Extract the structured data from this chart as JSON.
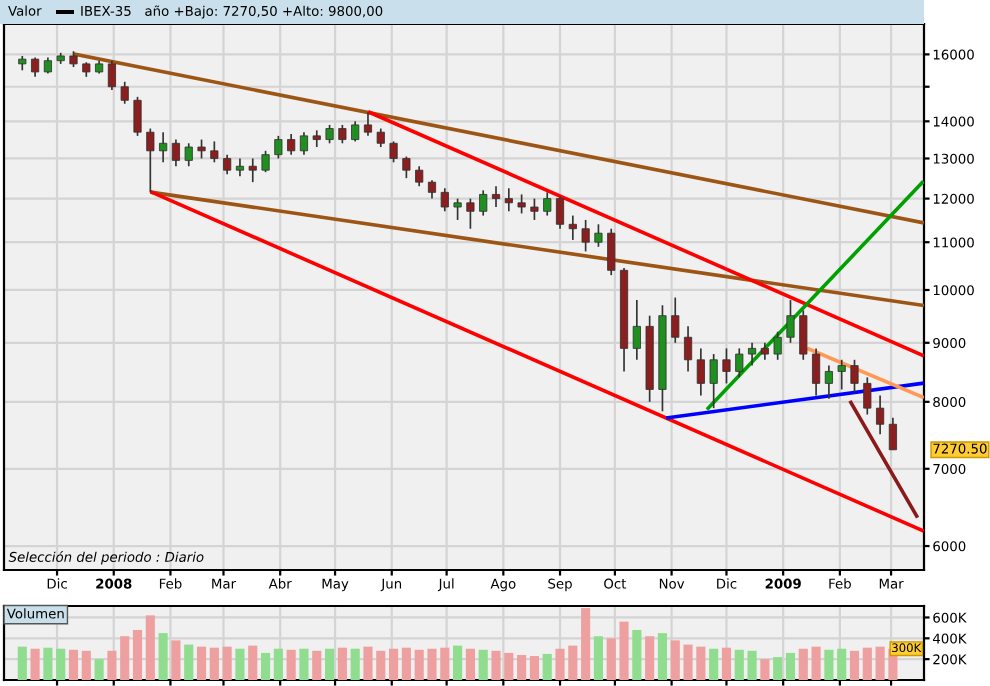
{
  "chart_data": [
    {
      "type": "candlestick",
      "title": "Valor",
      "subtitle": "IBEX-35   año +Bajo: 7270,50 +Alto: 9800,00",
      "annotations": [
        "Selección del periodo : Diario",
        "7270.50"
      ],
      "x": [
        "2007-11-12",
        "2007-11-19",
        "2007-11-26",
        "2007-12-03",
        "2007-12-10",
        "2007-12-17",
        "2007-12-24",
        "2007-12-31",
        "2008-01-07",
        "2008-01-14",
        "2008-01-21",
        "2008-01-28",
        "2008-02-04",
        "2008-02-11",
        "2008-02-18",
        "2008-02-25",
        "2008-03-03",
        "2008-03-10",
        "2008-03-17",
        "2008-03-24",
        "2008-03-31",
        "2008-04-07",
        "2008-04-14",
        "2008-04-21",
        "2008-04-28",
        "2008-05-05",
        "2008-05-12",
        "2008-05-19",
        "2008-05-26",
        "2008-06-02",
        "2008-06-09",
        "2008-06-16",
        "2008-06-23",
        "2008-06-30",
        "2008-07-07",
        "2008-07-14",
        "2008-07-21",
        "2008-07-28",
        "2008-08-04",
        "2008-08-11",
        "2008-08-18",
        "2008-08-25",
        "2008-09-01",
        "2008-09-08",
        "2008-09-15",
        "2008-09-22",
        "2008-09-29",
        "2008-10-06",
        "2008-10-13",
        "2008-10-20",
        "2008-10-27",
        "2008-11-03",
        "2008-11-10",
        "2008-11-17",
        "2008-11-24",
        "2008-12-01",
        "2008-12-08",
        "2008-12-15",
        "2008-12-22",
        "2008-12-29",
        "2009-01-05",
        "2009-01-12",
        "2009-01-19",
        "2009-01-26",
        "2009-02-02",
        "2009-02-09",
        "2009-02-16",
        "2009-02-23",
        "2009-03-02"
      ],
      "ohlc": [
        [
          15700,
          15950,
          15500,
          15850
        ],
        [
          15850,
          15900,
          15300,
          15450
        ],
        [
          15450,
          15900,
          15400,
          15800
        ],
        [
          15800,
          16050,
          15700,
          15950
        ],
        [
          15950,
          16100,
          15600,
          15700
        ],
        [
          15700,
          15750,
          15300,
          15450
        ],
        [
          15450,
          15800,
          15400,
          15700
        ],
        [
          15700,
          15800,
          14900,
          15000
        ],
        [
          15000,
          15150,
          14500,
          14600
        ],
        [
          14600,
          14700,
          13600,
          13700
        ],
        [
          13700,
          13800,
          12150,
          13200
        ],
        [
          13200,
          13700,
          12900,
          13400
        ],
        [
          13400,
          13500,
          12800,
          12950
        ],
        [
          12950,
          13400,
          12800,
          13300
        ],
        [
          13300,
          13500,
          13000,
          13200
        ],
        [
          13200,
          13450,
          12900,
          13000
        ],
        [
          13000,
          13100,
          12600,
          12700
        ],
        [
          12700,
          13000,
          12550,
          12800
        ],
        [
          12800,
          13000,
          12400,
          12700
        ],
        [
          12700,
          13200,
          12650,
          13100
        ],
        [
          13100,
          13600,
          13000,
          13500
        ],
        [
          13500,
          13650,
          13100,
          13200
        ],
        [
          13200,
          13700,
          13100,
          13600
        ],
        [
          13600,
          13750,
          13300,
          13500
        ],
        [
          13500,
          13900,
          13400,
          13800
        ],
        [
          13800,
          13900,
          13400,
          13500
        ],
        [
          13500,
          14000,
          13450,
          13900
        ],
        [
          13900,
          14250,
          13600,
          13700
        ],
        [
          13700,
          13800,
          13300,
          13400
        ],
        [
          13400,
          13450,
          12900,
          13000
        ],
        [
          13000,
          13050,
          12500,
          12700
        ],
        [
          12700,
          12800,
          12300,
          12400
        ],
        [
          12400,
          12450,
          12000,
          12150
        ],
        [
          12150,
          12250,
          11700,
          11800
        ],
        [
          11800,
          12000,
          11500,
          11900
        ],
        [
          11900,
          12000,
          11300,
          11700
        ],
        [
          11700,
          12200,
          11600,
          12100
        ],
        [
          12100,
          12300,
          11800,
          12000
        ],
        [
          12000,
          12250,
          11700,
          11900
        ],
        [
          11900,
          12100,
          11650,
          11800
        ],
        [
          11800,
          12000,
          11500,
          11700
        ],
        [
          11700,
          12150,
          11600,
          12000
        ],
        [
          12000,
          12050,
          11300,
          11400
        ],
        [
          11400,
          11600,
          11050,
          11300
        ],
        [
          11300,
          11500,
          10800,
          11000
        ],
        [
          11000,
          11400,
          10900,
          11200
        ],
        [
          11200,
          11300,
          10300,
          10400
        ],
        [
          10400,
          10450,
          8500,
          8900
        ],
        [
          8900,
          9800,
          8700,
          9300
        ],
        [
          9300,
          9500,
          8000,
          8200
        ],
        [
          8200,
          9700,
          7850,
          9500
        ],
        [
          9500,
          9850,
          9000,
          9100
        ],
        [
          9100,
          9300,
          8500,
          8700
        ],
        [
          8700,
          8900,
          8100,
          8300
        ],
        [
          8300,
          8800,
          7900,
          8700
        ],
        [
          8700,
          8900,
          8300,
          8500
        ],
        [
          8500,
          8900,
          8400,
          8800
        ],
        [
          8800,
          9000,
          8600,
          8900
        ],
        [
          8900,
          9000,
          8700,
          8800
        ],
        [
          8800,
          9200,
          8700,
          9100
        ],
        [
          9100,
          9800,
          9000,
          9500
        ],
        [
          9500,
          9600,
          8700,
          8800
        ],
        [
          8800,
          8900,
          8100,
          8300
        ],
        [
          8300,
          8600,
          8050,
          8500
        ],
        [
          8500,
          8700,
          8200,
          8600
        ],
        [
          8600,
          8700,
          8150,
          8300
        ],
        [
          8300,
          8400,
          7800,
          7900
        ],
        [
          7900,
          8100,
          7500,
          7650
        ],
        [
          7650,
          7750,
          7270.5,
          7270.5
        ]
      ],
      "colors": [
        "#1f8f1f",
        "#8b1e1e",
        "#1f8f1f",
        "#1f8f1f",
        "#8b1e1e",
        "#8b1e1e",
        "#1f8f1f",
        "#8b1e1e",
        "#8b1e1e",
        "#8b1e1e",
        "#8b1e1e",
        "#1f8f1f",
        "#8b1e1e",
        "#1f8f1f",
        "#8b1e1e",
        "#8b1e1e",
        "#8b1e1e",
        "#1f8f1f",
        "#8b1e1e",
        "#1f8f1f",
        "#1f8f1f",
        "#8b1e1e",
        "#1f8f1f",
        "#8b1e1e",
        "#1f8f1f",
        "#8b1e1e",
        "#1f8f1f",
        "#8b1e1e",
        "#8b1e1e",
        "#8b1e1e",
        "#8b1e1e",
        "#8b1e1e",
        "#8b1e1e",
        "#8b1e1e",
        "#1f8f1f",
        "#8b1e1e",
        "#1f8f1f",
        "#8b1e1e",
        "#8b1e1e",
        "#8b1e1e",
        "#8b1e1e",
        "#1f8f1f",
        "#8b1e1e",
        "#8b1e1e",
        "#8b1e1e",
        "#1f8f1f",
        "#8b1e1e",
        "#8b1e1e",
        "#1f8f1f",
        "#8b1e1e",
        "#1f8f1f",
        "#8b1e1e",
        "#8b1e1e",
        "#8b1e1e",
        "#1f8f1f",
        "#8b1e1e",
        "#1f8f1f",
        "#1f8f1f",
        "#8b1e1e",
        "#1f8f1f",
        "#1f8f1f",
        "#8b1e1e",
        "#8b1e1e",
        "#1f8f1f",
        "#1f8f1f",
        "#8b1e1e",
        "#8b1e1e",
        "#8b1e1e",
        "#8b1e1e"
      ],
      "series": [
        {
          "type": "line",
          "color": "#9c5514",
          "x": [
            "2007-12-11",
            "2009-03-18"
          ],
          "values": [
            16000,
            11440
          ]
        },
        {
          "type": "line",
          "color": "#9c5514",
          "x": [
            "2008-01-22",
            "2009-03-18"
          ],
          "values": [
            12150,
            9700
          ]
        },
        {
          "type": "line",
          "color": "#ff0000",
          "x": [
            "2008-05-20",
            "2009-03-18"
          ],
          "values": [
            14250,
            8780
          ]
        },
        {
          "type": "line",
          "color": "#ff0000",
          "x": [
            "2008-01-22",
            "2009-03-18"
          ],
          "values": [
            12150,
            6190
          ]
        },
        {
          "type": "line",
          "color": "#0000ff",
          "x": [
            "2008-10-30",
            "2009-03-18"
          ],
          "values": [
            7750,
            8300
          ]
        },
        {
          "type": "line",
          "color": "#00a000",
          "x": [
            "2008-11-21",
            "2009-03-18"
          ],
          "values": [
            7900,
            12390
          ]
        },
        {
          "type": "line",
          "color": "#ff9955",
          "x": [
            "2009-01-15",
            "2009-03-18"
          ],
          "values": [
            8890,
            8080
          ]
        },
        {
          "type": "line",
          "color": "#8b1a1a",
          "x": [
            "2009-02-07",
            "2009-03-15"
          ],
          "values": [
            7990,
            6370
          ]
        }
      ],
      "log": "y",
      "grid": true,
      "xlim": [
        "2007-11-02",
        "2009-03-19"
      ],
      "xticks": [
        {
          "value": "2007-12-01",
          "label": "Dic"
        },
        {
          "value": "2008-01-01",
          "label": "2008"
        },
        {
          "value": "2008-02-01",
          "label": "Feb"
        },
        {
          "value": "2008-03-01",
          "label": "Mar"
        },
        {
          "value": "2008-04-01",
          "label": "Abr"
        },
        {
          "value": "2008-05-01",
          "label": "May"
        },
        {
          "value": "2008-06-01",
          "label": "Jun"
        },
        {
          "value": "2008-07-01",
          "label": "Jul"
        },
        {
          "value": "2008-08-01",
          "label": "Ago"
        },
        {
          "value": "2008-09-01",
          "label": "Sep"
        },
        {
          "value": "2008-10-01",
          "label": "Oct"
        },
        {
          "value": "2008-11-01",
          "label": "Nov"
        },
        {
          "value": "2008-12-01",
          "label": "Dic"
        },
        {
          "value": "2009-01-01",
          "label": "2009"
        },
        {
          "value": "2009-02-01",
          "label": "Feb"
        },
        {
          "value": "2009-03-01",
          "label": "Mar"
        }
      ],
      "ylim": [
        5720,
        17000
      ],
      "yticks": [
        6000,
        7000,
        8000,
        9000,
        10000,
        11000,
        12000,
        13000,
        14000,
        {
          "value": 15000,
          "label": null
        },
        16000
      ]
    },
    {
      "type": "bar",
      "title": "Volumen",
      "annotations": [
        "300K"
      ],
      "x": [
        "2007-11-12",
        "2007-11-19",
        "2007-11-26",
        "2007-12-03",
        "2007-12-10",
        "2007-12-17",
        "2007-12-24",
        "2007-12-31",
        "2008-01-07",
        "2008-01-14",
        "2008-01-21",
        "2008-01-28",
        "2008-02-04",
        "2008-02-11",
        "2008-02-18",
        "2008-02-25",
        "2008-03-03",
        "2008-03-10",
        "2008-03-17",
        "2008-03-24",
        "2008-03-31",
        "2008-04-07",
        "2008-04-14",
        "2008-04-21",
        "2008-04-28",
        "2008-05-05",
        "2008-05-12",
        "2008-05-19",
        "2008-05-26",
        "2008-06-02",
        "2008-06-09",
        "2008-06-16",
        "2008-06-23",
        "2008-06-30",
        "2008-07-07",
        "2008-07-14",
        "2008-07-21",
        "2008-07-28",
        "2008-08-04",
        "2008-08-11",
        "2008-08-18",
        "2008-08-25",
        "2008-09-01",
        "2008-09-08",
        "2008-09-15",
        "2008-09-22",
        "2008-09-29",
        "2008-10-06",
        "2008-10-13",
        "2008-10-20",
        "2008-10-27",
        "2008-11-03",
        "2008-11-10",
        "2008-11-17",
        "2008-11-24",
        "2008-12-01",
        "2008-12-08",
        "2008-12-15",
        "2008-12-22",
        "2008-12-29",
        "2009-01-05",
        "2009-01-12",
        "2009-01-19",
        "2009-01-26",
        "2009-02-02",
        "2009-02-09",
        "2009-02-16",
        "2009-02-23",
        "2009-03-02"
      ],
      "values": [
        320000,
        300000,
        310000,
        300000,
        290000,
        280000,
        200000,
        280000,
        420000,
        480000,
        620000,
        450000,
        380000,
        340000,
        320000,
        310000,
        320000,
        300000,
        330000,
        260000,
        300000,
        290000,
        300000,
        280000,
        300000,
        310000,
        300000,
        320000,
        280000,
        300000,
        310000,
        290000,
        300000,
        310000,
        330000,
        300000,
        290000,
        280000,
        260000,
        240000,
        230000,
        250000,
        300000,
        330000,
        690000,
        420000,
        400000,
        560000,
        480000,
        420000,
        450000,
        380000,
        340000,
        320000,
        300000,
        310000,
        290000,
        280000,
        200000,
        220000,
        260000,
        300000,
        320000,
        290000,
        300000,
        280000,
        310000,
        320000,
        300000
      ],
      "colors": [
        "#90dd90",
        "#eea0a0",
        "#90dd90",
        "#90dd90",
        "#eea0a0",
        "#eea0a0",
        "#90dd90",
        "#eea0a0",
        "#eea0a0",
        "#eea0a0",
        "#eea0a0",
        "#90dd90",
        "#eea0a0",
        "#90dd90",
        "#eea0a0",
        "#eea0a0",
        "#eea0a0",
        "#90dd90",
        "#eea0a0",
        "#90dd90",
        "#90dd90",
        "#eea0a0",
        "#90dd90",
        "#eea0a0",
        "#90dd90",
        "#eea0a0",
        "#90dd90",
        "#eea0a0",
        "#eea0a0",
        "#eea0a0",
        "#eea0a0",
        "#eea0a0",
        "#eea0a0",
        "#eea0a0",
        "#90dd90",
        "#eea0a0",
        "#90dd90",
        "#eea0a0",
        "#eea0a0",
        "#eea0a0",
        "#eea0a0",
        "#90dd90",
        "#eea0a0",
        "#eea0a0",
        "#eea0a0",
        "#90dd90",
        "#eea0a0",
        "#eea0a0",
        "#90dd90",
        "#eea0a0",
        "#90dd90",
        "#eea0a0",
        "#eea0a0",
        "#eea0a0",
        "#90dd90",
        "#eea0a0",
        "#90dd90",
        "#90dd90",
        "#eea0a0",
        "#90dd90",
        "#90dd90",
        "#eea0a0",
        "#eea0a0",
        "#90dd90",
        "#90dd90",
        "#eea0a0",
        "#eea0a0",
        "#eea0a0",
        "#eea0a0"
      ],
      "grid": true,
      "tick_labels": "y",
      "xlim": [
        "2007-11-02",
        "2009-03-19"
      ],
      "ylim": [
        0,
        710000
      ],
      "yticks": [
        {
          "value": 200000,
          "label": "200K"
        },
        {
          "value": 400000,
          "label": "400K"
        },
        {
          "value": 600000,
          "label": "600K"
        }
      ]
    }
  ]
}
